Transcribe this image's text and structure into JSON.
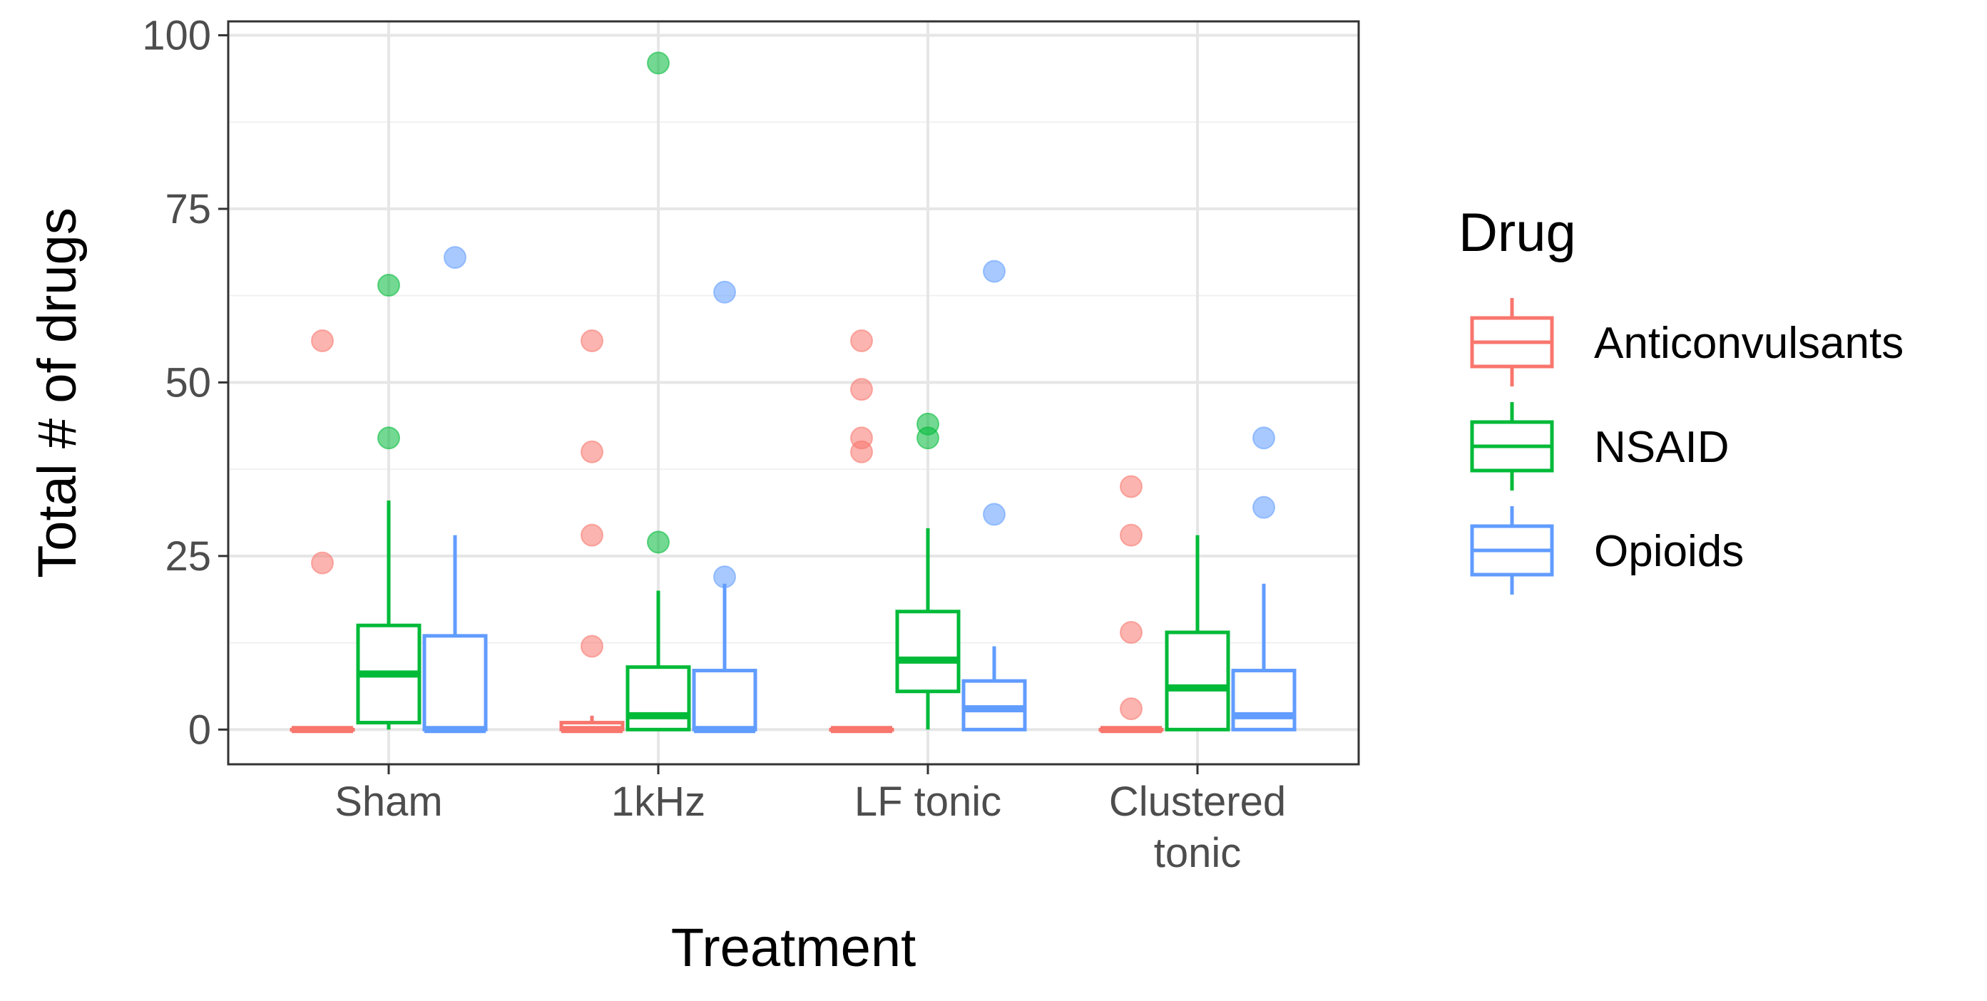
{
  "chart_data": {
    "type": "box",
    "xlabel": "Treatment",
    "ylabel": "Total # of drugs",
    "ylim": [
      -5,
      102
    ],
    "yticks": [
      0,
      25,
      50,
      75,
      100
    ],
    "grid": true,
    "legend": {
      "title": "Drug",
      "placement": "right"
    },
    "categories": [
      [
        "Sham"
      ],
      [
        "1kHz"
      ],
      [
        "LF tonic"
      ],
      [
        "Clustered",
        "tonic"
      ]
    ],
    "series": [
      {
        "name": "Anticonvulsants",
        "color": "#F8766D",
        "boxes": [
          {
            "min": 0,
            "q1": 0,
            "median": 0,
            "q3": 0,
            "max": 0,
            "outliers": [
              24,
              56
            ]
          },
          {
            "min": 0,
            "q1": 0,
            "median": 0,
            "q3": 1,
            "max": 2,
            "outliers": [
              12,
              28,
              40,
              56
            ]
          },
          {
            "min": 0,
            "q1": 0,
            "median": 0,
            "q3": 0,
            "max": 0,
            "outliers": [
              40,
              42,
              49,
              56
            ]
          },
          {
            "min": 0,
            "q1": 0,
            "median": 0,
            "q3": 0,
            "max": 0,
            "outliers": [
              3,
              14,
              28,
              35
            ]
          }
        ]
      },
      {
        "name": "NSAID",
        "color": "#00BA38",
        "boxes": [
          {
            "min": 0,
            "q1": 1,
            "median": 8,
            "q3": 15,
            "max": 33,
            "outliers": [
              42,
              64
            ]
          },
          {
            "min": 0,
            "q1": 0,
            "median": 2,
            "q3": 9,
            "max": 20,
            "outliers": [
              27,
              96
            ]
          },
          {
            "min": 0,
            "q1": 5.5,
            "median": 10,
            "q3": 17,
            "max": 29,
            "outliers": [
              42,
              44
            ]
          },
          {
            "min": 0,
            "q1": 0,
            "median": 6,
            "q3": 14,
            "max": 28,
            "outliers": []
          }
        ]
      },
      {
        "name": "Opioids",
        "color": "#619CFF",
        "boxes": [
          {
            "min": 0,
            "q1": 0,
            "median": 0,
            "q3": 13.5,
            "max": 28,
            "outliers": [
              68
            ]
          },
          {
            "min": 0,
            "q1": 0,
            "median": 0,
            "q3": 8.5,
            "max": 21,
            "outliers": [
              22,
              63
            ]
          },
          {
            "min": 0,
            "q1": 0,
            "median": 3,
            "q3": 7,
            "max": 12,
            "outliers": [
              31,
              66
            ]
          },
          {
            "min": 0,
            "q1": 0,
            "median": 2,
            "q3": 8.5,
            "max": 21,
            "outliers": [
              32,
              42
            ]
          }
        ]
      }
    ]
  }
}
